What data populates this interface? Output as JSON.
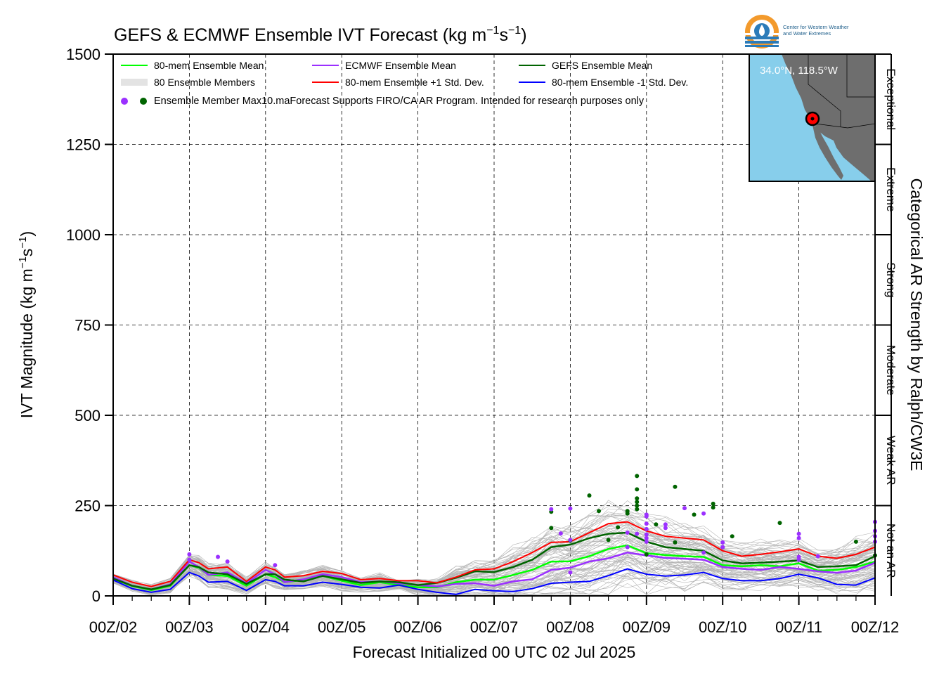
{
  "title": "GEFS & ECMWF Ensemble IVT Forecast (kg m",
  "title_sup1": "−1",
  "title_mid": "s",
  "title_sup2": "−1",
  "title_end": ")",
  "ylabel": "IVT Magnitude (kg m",
  "ylabel_sup1": "−1",
  "ylabel_mid": "s",
  "ylabel_sup2": "−1",
  "ylabel_end": ")",
  "xlabel": "Forecast Initialized 00 UTC 02 Jul 2025",
  "right_label": "Categorical AR Strength by Ralph/CW3E",
  "logo": {
    "line1": "Center for Western Weather",
    "line2": "and Water Extremes"
  },
  "map": {
    "coord_text": "34.0°N, 118.5°W",
    "ocean_color": "#87ceeb",
    "land_color": "#6e6e6e",
    "marker_color": "#ff0000"
  },
  "legend": {
    "mean": "80-mem Ensemble Mean",
    "ecmwf": "ECMWF Ensemble Mean",
    "gefs": "GEFS Ensemble Mean",
    "members": "80 Ensemble Members",
    "plus": "80-mem Ensemble +1 Std. Dev.",
    "minus": "80-mem Ensemble -1 Std. Dev.",
    "max": "Ensemble Member Max",
    "note": "10.maForecast Supports FIRO/CA AR Program. Intended for research purposes only"
  },
  "categories": [
    {
      "label": "Not an AR",
      "from": 0,
      "to": 250
    },
    {
      "label": "Weak AR",
      "from": 250,
      "to": 500
    },
    {
      "label": "Moderate",
      "from": 500,
      "to": 750
    },
    {
      "label": "Strong",
      "from": 750,
      "to": 1000
    },
    {
      "label": "Extreme",
      "from": 1000,
      "to": 1250
    },
    {
      "label": "Exceptional",
      "from": 1250,
      "to": 1500
    }
  ],
  "chart_data": {
    "type": "line",
    "ylim": [
      0,
      1500
    ],
    "xlim": [
      0,
      240
    ],
    "yticks": [
      0,
      250,
      500,
      750,
      1000,
      1250,
      1500
    ],
    "ytick_labels": [
      "0",
      "250",
      "500",
      "750",
      "1000",
      "1250",
      "1500"
    ],
    "xticks": [
      0,
      24,
      48,
      72,
      96,
      120,
      144,
      168,
      192,
      216,
      240
    ],
    "xtick_labels": [
      "00Z/02",
      "00Z/03",
      "00Z/04",
      "00Z/05",
      "00Z/06",
      "00Z/07",
      "00Z/08",
      "00Z/09",
      "00Z/10",
      "00Z/11",
      "00Z/12"
    ],
    "grid": true,
    "legend_position": "top-left",
    "x_hours": [
      0,
      6,
      12,
      18,
      24,
      27,
      30,
      36,
      42,
      48,
      51,
      54,
      60,
      66,
      72,
      78,
      84,
      90,
      96,
      102,
      108,
      114,
      120,
      126,
      132,
      138,
      144,
      150,
      156,
      162,
      168,
      174,
      180,
      186,
      192,
      198,
      204,
      210,
      216,
      222,
      228,
      234,
      240
    ],
    "series": [
      {
        "name": "80-mem Ensemble Mean",
        "color": "#00ff00",
        "width": 2.5,
        "values": [
          48,
          27,
          16,
          28,
          85,
          78,
          58,
          55,
          28,
          60,
          52,
          38,
          44,
          55,
          42,
          30,
          38,
          30,
          24,
          24,
          38,
          45,
          45,
          58,
          72,
          95,
          96,
          110,
          130,
          140,
          118,
          113,
          110,
          108,
          85,
          82,
          85,
          82,
          90,
          70,
          72,
          80,
          95
        ]
      },
      {
        "name": "ECMWF Ensemble Mean",
        "color": "#9b30ff",
        "width": 2.5,
        "values": [
          52,
          28,
          18,
          32,
          95,
          80,
          58,
          65,
          35,
          72,
          60,
          38,
          46,
          60,
          52,
          38,
          40,
          35,
          30,
          26,
          33,
          35,
          28,
          40,
          46,
          72,
          78,
          95,
          104,
          120,
          112,
          105,
          103,
          100,
          80,
          75,
          72,
          80,
          75,
          68,
          64,
          70,
          92
        ]
      },
      {
        "name": "GEFS Ensemble Mean",
        "color": "#006400",
        "width": 2.5,
        "values": [
          48,
          28,
          18,
          30,
          85,
          80,
          65,
          60,
          33,
          60,
          60,
          45,
          40,
          55,
          46,
          36,
          40,
          38,
          30,
          36,
          50,
          68,
          66,
          80,
          100,
          135,
          142,
          160,
          172,
          175,
          150,
          135,
          130,
          125,
          98,
          90,
          92,
          95,
          98,
          80,
          82,
          85,
          110
        ]
      },
      {
        "name": "80-mem Ensemble +1 Std. Dev.",
        "color": "#ff0000",
        "width": 2,
        "values": [
          58,
          38,
          26,
          40,
          100,
          92,
          75,
          80,
          40,
          80,
          72,
          52,
          56,
          68,
          62,
          45,
          48,
          42,
          42,
          36,
          52,
          72,
          75,
          95,
          120,
          148,
          150,
          175,
          200,
          205,
          180,
          165,
          160,
          155,
          125,
          110,
          115,
          122,
          130,
          110,
          104,
          115,
          135
        ]
      },
      {
        "name": "80-mem Ensemble -1 Std. Dev.",
        "color": "#0000ff",
        "width": 2,
        "values": [
          44,
          20,
          10,
          18,
          65,
          55,
          38,
          40,
          15,
          45,
          40,
          28,
          28,
          38,
          32,
          24,
          22,
          30,
          18,
          10,
          4,
          18,
          14,
          12,
          20,
          35,
          38,
          40,
          56,
          75,
          60,
          55,
          58,
          65,
          48,
          42,
          42,
          48,
          60,
          50,
          32,
          30,
          50
        ]
      }
    ],
    "members_count": 80,
    "members_color": "#b4b4b4",
    "max_points_ecmwf": [
      {
        "x": 24,
        "y": 115
      },
      {
        "x": 24,
        "y": 100
      },
      {
        "x": 33,
        "y": 108
      },
      {
        "x": 36,
        "y": 95
      },
      {
        "x": 51,
        "y": 85
      },
      {
        "x": 138,
        "y": 240
      },
      {
        "x": 144,
        "y": 242
      },
      {
        "x": 141,
        "y": 173
      },
      {
        "x": 144,
        "y": 155
      },
      {
        "x": 168,
        "y": 220
      },
      {
        "x": 168,
        "y": 200
      },
      {
        "x": 168,
        "y": 185
      },
      {
        "x": 168,
        "y": 170
      },
      {
        "x": 168,
        "y": 160
      },
      {
        "x": 168,
        "y": 150
      },
      {
        "x": 162,
        "y": 175
      },
      {
        "x": 162,
        "y": 135
      },
      {
        "x": 174,
        "y": 188
      },
      {
        "x": 180,
        "y": 243
      },
      {
        "x": 186,
        "y": 228
      },
      {
        "x": 192,
        "y": 148
      },
      {
        "x": 192,
        "y": 135
      },
      {
        "x": 216,
        "y": 172
      },
      {
        "x": 216,
        "y": 160
      },
      {
        "x": 216,
        "y": 108
      },
      {
        "x": 216,
        "y": 100
      },
      {
        "x": 222,
        "y": 110
      },
      {
        "x": 240,
        "y": 205
      },
      {
        "x": 240,
        "y": 180
      },
      {
        "x": 240,
        "y": 165
      },
      {
        "x": 240,
        "y": 150
      },
      {
        "x": 174,
        "y": 198
      },
      {
        "x": 165,
        "y": 172
      },
      {
        "x": 168,
        "y": 225
      },
      {
        "x": 186,
        "y": 120
      },
      {
        "x": 144,
        "y": 65
      }
    ],
    "max_points_gefs": [
      {
        "x": 138,
        "y": 233
      },
      {
        "x": 138,
        "y": 188
      },
      {
        "x": 144,
        "y": 153
      },
      {
        "x": 150,
        "y": 278
      },
      {
        "x": 153,
        "y": 235
      },
      {
        "x": 156,
        "y": 155
      },
      {
        "x": 159,
        "y": 190
      },
      {
        "x": 162,
        "y": 228
      },
      {
        "x": 162,
        "y": 235
      },
      {
        "x": 165,
        "y": 332
      },
      {
        "x": 165,
        "y": 295
      },
      {
        "x": 165,
        "y": 270
      },
      {
        "x": 165,
        "y": 260
      },
      {
        "x": 165,
        "y": 250
      },
      {
        "x": 165,
        "y": 240
      },
      {
        "x": 171,
        "y": 198
      },
      {
        "x": 177,
        "y": 302
      },
      {
        "x": 177,
        "y": 148
      },
      {
        "x": 183,
        "y": 225
      },
      {
        "x": 189,
        "y": 255
      },
      {
        "x": 189,
        "y": 245
      },
      {
        "x": 195,
        "y": 165
      },
      {
        "x": 210,
        "y": 202
      },
      {
        "x": 234,
        "y": 150
      },
      {
        "x": 240,
        "y": 112
      },
      {
        "x": 192,
        "y": 135
      },
      {
        "x": 168,
        "y": 115
      }
    ]
  }
}
